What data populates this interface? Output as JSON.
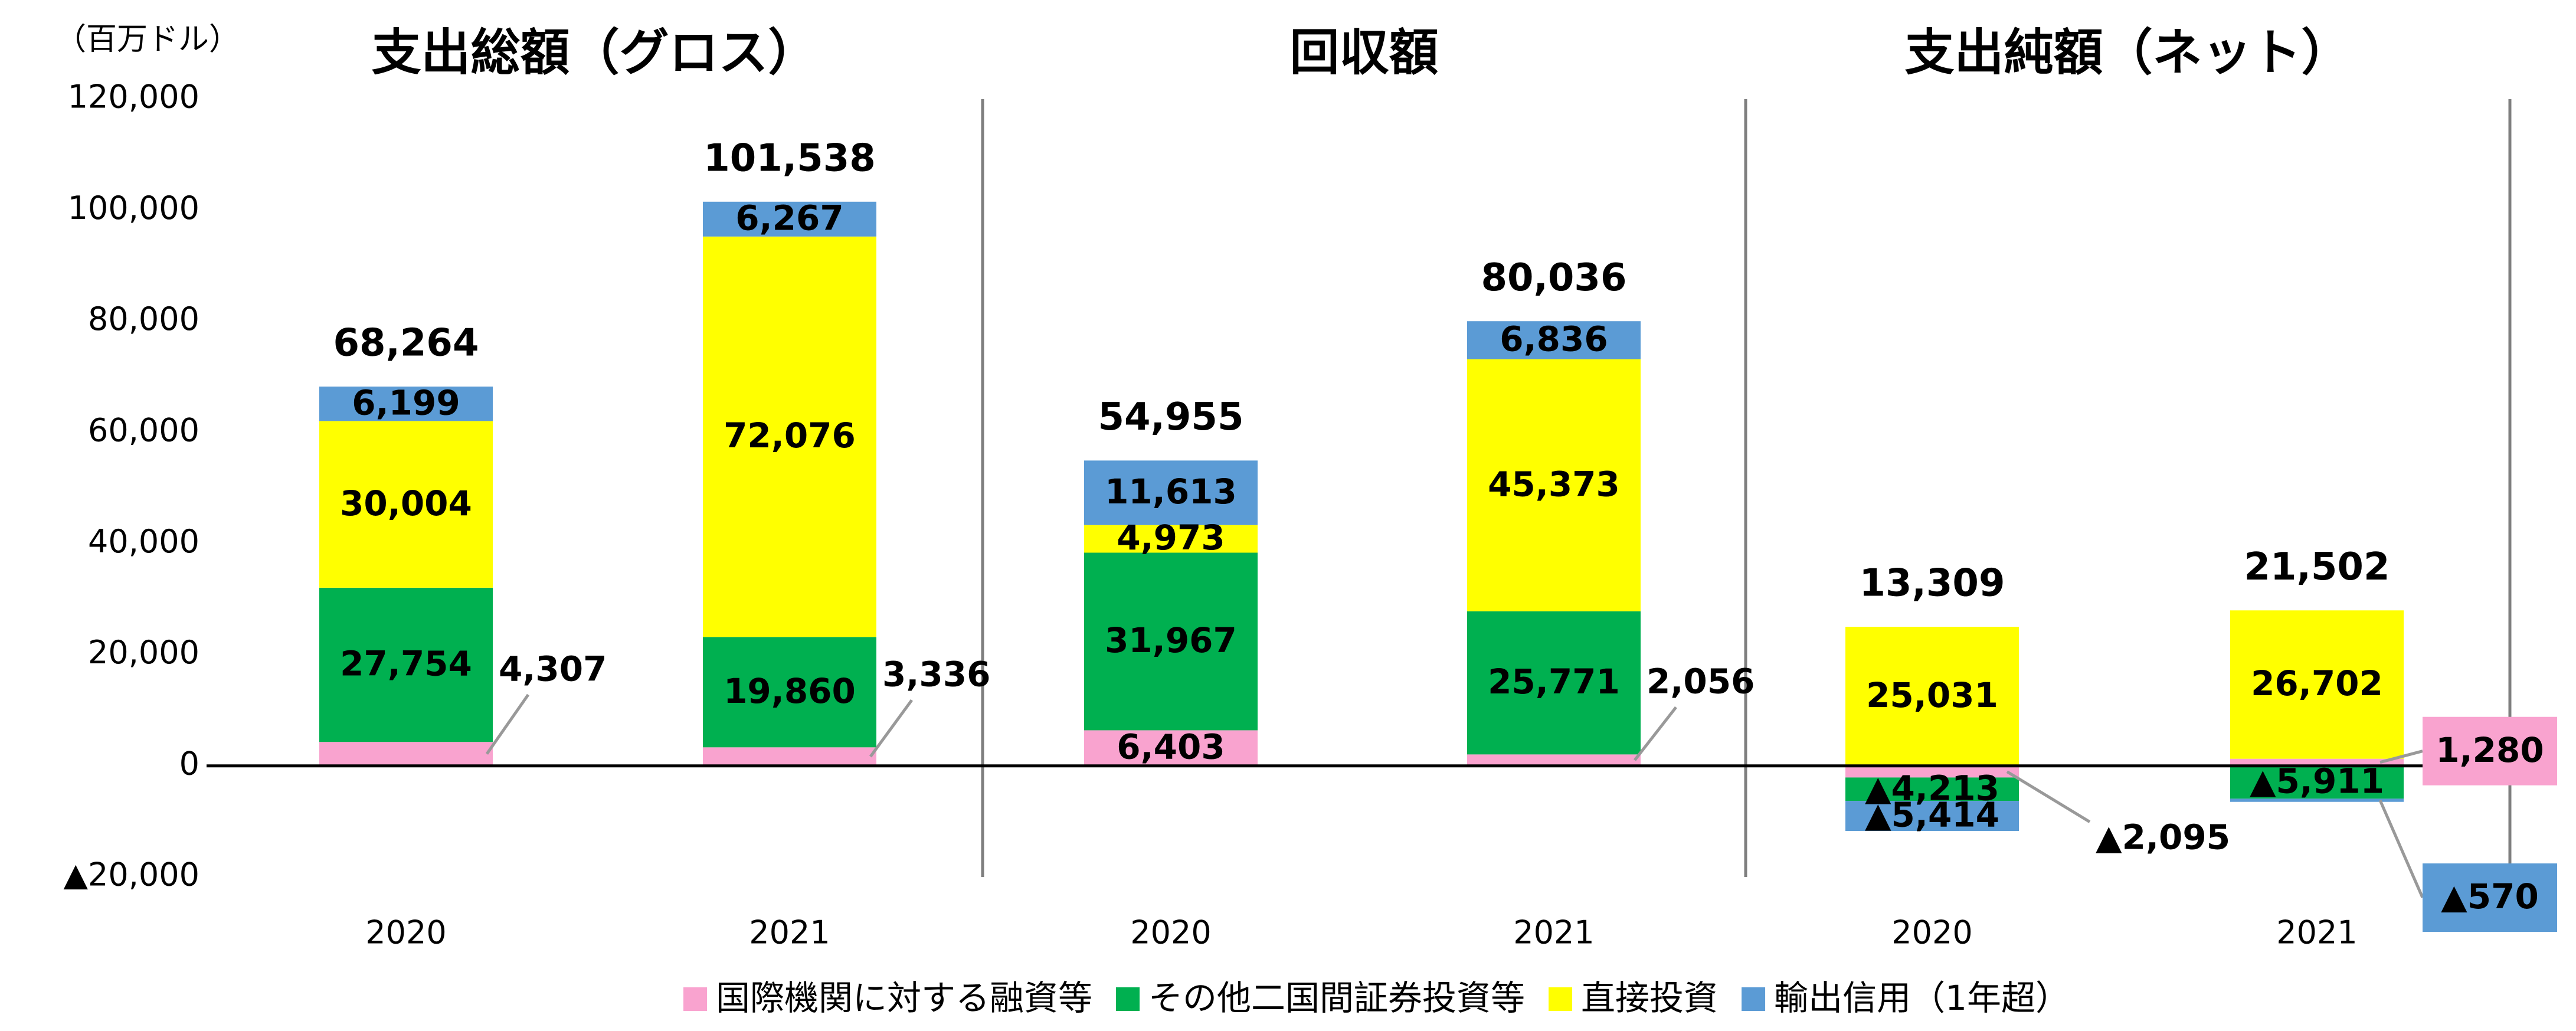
{
  "chart_data": {
    "type": "stacked_bar",
    "y_label": "（百万ドル）",
    "panel_titles": [
      "支出総額（グロス）",
      "回収額",
      "支出純額（ネット）"
    ],
    "categories": [
      "2020",
      "2021",
      "2020",
      "2021",
      "2020",
      "2021"
    ],
    "series": [
      {
        "name": "国際機関に対する融資等",
        "color": "#f9a3cf",
        "label_color": "#000000",
        "values": [
          4307,
          3336,
          6403,
          2056,
          -2095,
          1280
        ],
        "value_labels": [
          "4,307",
          "3,336",
          "6,403",
          "2,056",
          "▲2,095",
          "1,280"
        ]
      },
      {
        "name": "その他二国間証券投資等",
        "color": "#00b050",
        "label_color": "#ffffff",
        "values": [
          27754,
          19860,
          31967,
          25771,
          -4213,
          -5911
        ],
        "value_labels": [
          "27,754",
          "19,860",
          "31,967",
          "25,771",
          "▲4,213",
          "▲5,911"
        ]
      },
      {
        "name": "直接投資",
        "color": "#ffff00",
        "label_color": "#000000",
        "values": [
          30004,
          72076,
          4973,
          45373,
          25031,
          26702
        ],
        "value_labels": [
          "30,004",
          "72,076",
          "4,973",
          "45,373",
          "25,031",
          "26,702"
        ]
      },
      {
        "name": "輸出信用（1年超）",
        "color": "#5b9bd5",
        "label_color": "#ffffff",
        "values": [
          6199,
          6267,
          11613,
          6836,
          -5414,
          -570
        ],
        "value_labels": [
          "6,199",
          "6,267",
          "11,613",
          "6,836",
          "▲5,414",
          "▲570"
        ]
      }
    ],
    "totals": [
      68264,
      101538,
      54955,
      80036,
      13309,
      21502
    ],
    "total_labels": [
      "68,264",
      "101,538",
      "54,955",
      "80,036",
      "13,309",
      "21,502"
    ],
    "ylim": [
      -20000,
      120000
    ],
    "yticks": [
      {
        "value": -20000,
        "label": "▲20,000"
      },
      0,
      {
        "value": 20000,
        "label": "20,000"
      },
      {
        "value": 40000,
        "label": "40,000"
      },
      {
        "value": 60000,
        "label": "60,000"
      },
      {
        "value": 80000,
        "label": "80,000"
      },
      {
        "value": 100000,
        "label": "100,000"
      },
      {
        "value": 120000,
        "label": "120,000"
      }
    ]
  }
}
